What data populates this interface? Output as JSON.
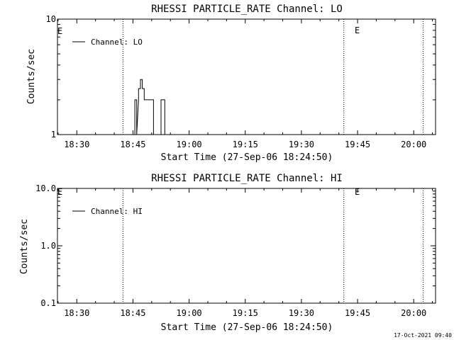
{
  "panels": [
    {
      "title": "RHESSI PARTICLE_RATE Channel: LO",
      "ylabel": "Counts/sec",
      "xlabel": "Start Time (27-Sep-06 18:24:50)",
      "legend": "Channel: LO",
      "event_marks": [
        "E",
        "E"
      ]
    },
    {
      "title": "RHESSI PARTICLE_RATE Channel: HI",
      "ylabel": "Counts/sec",
      "xlabel": "Start Time (27-Sep-06 18:24:50)",
      "legend": "Channel: HI",
      "event_marks": [
        "E",
        "E"
      ]
    }
  ],
  "footer": {
    "timestamp": "17-Oct-2021 09:40"
  },
  "chart_data": [
    {
      "type": "line",
      "title": "RHESSI PARTICLE_RATE Channel: LO",
      "xlabel": "Start Time (27-Sep-06 18:24:50)",
      "ylabel": "Counts/sec",
      "yscale": "log",
      "ylim": [
        1,
        10
      ],
      "xlim": [
        "18:24:50",
        "20:05:50"
      ],
      "x_ticks": [
        "18:30",
        "18:45",
        "19:00",
        "19:15",
        "19:30",
        "19:45",
        "20:00"
      ],
      "y_ticks": [
        "1",
        "10"
      ],
      "grid": false,
      "legend_position": "top-left",
      "vlines": [
        "18:42:20",
        "19:41:20",
        "20:02:30"
      ],
      "series": [
        {
          "name": "Channel: LO",
          "x": [
            "18:45:30",
            "18:45:30",
            "18:46:00",
            "18:46:00",
            "18:46:30",
            "18:46:30",
            "18:47:00",
            "18:47:00",
            "18:47:30",
            "18:47:30",
            "18:48:00",
            "18:48:00",
            "18:50:30",
            "18:50:30",
            "18:52:30",
            "18:52:30",
            "18:53:00",
            "18:53:00",
            "18:53:30",
            "18:53:30"
          ],
          "y": [
            1,
            2,
            2,
            1,
            2,
            2.5,
            2.5,
            3,
            3,
            2.5,
            2.5,
            2,
            2,
            1,
            1,
            2,
            2,
            2,
            2,
            1
          ]
        }
      ]
    },
    {
      "type": "line",
      "title": "RHESSI PARTICLE_RATE Channel: HI",
      "xlabel": "Start Time (27-Sep-06 18:24:50)",
      "ylabel": "Counts/sec",
      "yscale": "log",
      "ylim": [
        0.1,
        10
      ],
      "xlim": [
        "18:24:50",
        "20:05:50"
      ],
      "x_ticks": [
        "18:30",
        "18:45",
        "19:00",
        "19:15",
        "19:30",
        "19:45",
        "20:00"
      ],
      "y_ticks": [
        "0.1",
        "1.0",
        "10.0"
      ],
      "grid": false,
      "legend_position": "top-left",
      "vlines": [
        "18:42:20",
        "19:41:20",
        "20:02:30"
      ],
      "series": [
        {
          "name": "Channel: HI",
          "x": [],
          "y": []
        }
      ]
    }
  ]
}
